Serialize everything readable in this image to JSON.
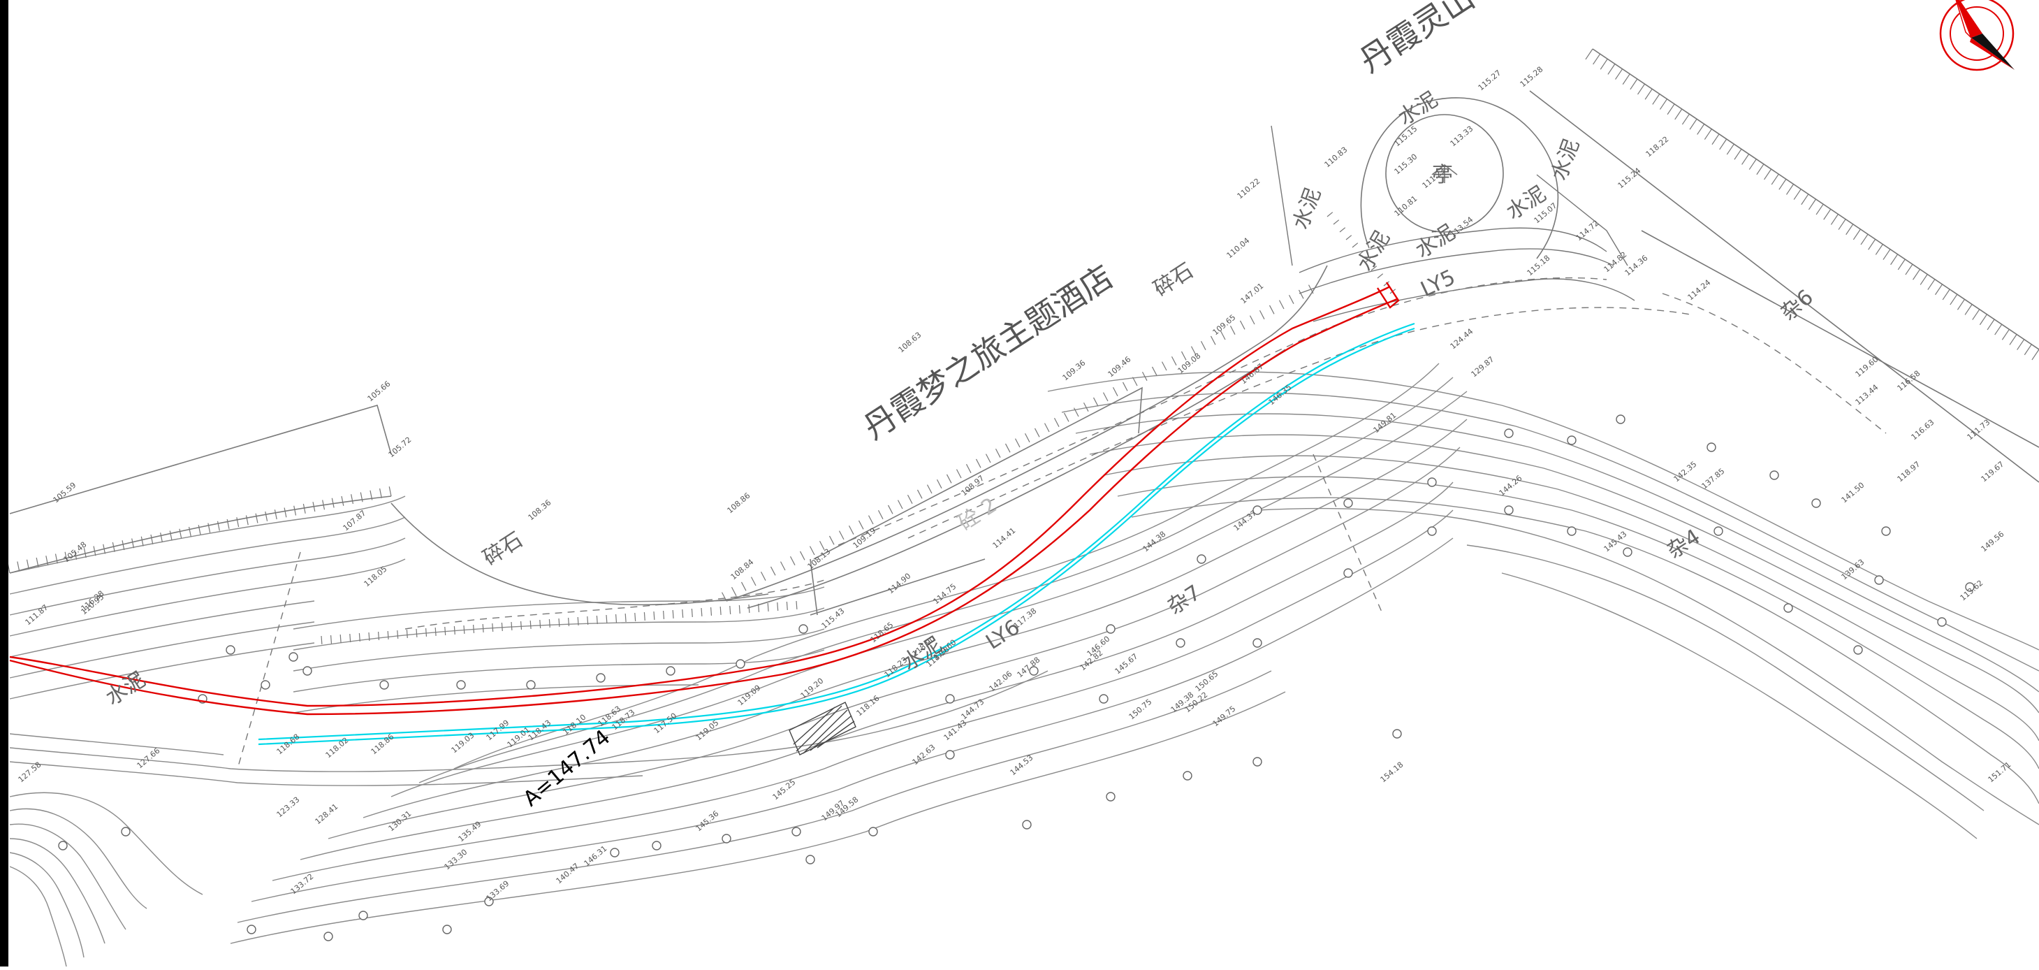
{
  "labels": {
    "hotel": "丹霞梦之旅主题酒店",
    "mountain": "丹霞灵山",
    "annotation": "A=147.74",
    "gravel_1": "碎石",
    "gravel_2": "碎石",
    "concrete_1": "水泥",
    "concrete_2": "水泥",
    "concrete_3": "水泥",
    "concrete_4": "水泥",
    "concrete_5": "水泥",
    "concrete_6": "水泥",
    "concrete_7": "水泥",
    "concrete_8": "水泥",
    "sand_2": "砼 2",
    "road_ly5": "LY5",
    "road_ly6": "LY6",
    "slope_6": "杂6",
    "slope_4": "杂4",
    "slope_7": "杂7",
    "pavilion": "亭"
  },
  "elevations": [
    "105.59",
    "105.48",
    "111.87",
    "110.95",
    "105.66",
    "105.72",
    "108.36",
    "107.87",
    "108.63",
    "109.36",
    "109.46",
    "108.86",
    "108.13",
    "109.19",
    "108.97",
    "108.84",
    "109.08",
    "109.65",
    "110.04",
    "110.22",
    "110.83",
    "110.81",
    "111.23",
    "113.33",
    "115.27",
    "115.28",
    "118.22",
    "115.24",
    "115.30",
    "115.15",
    "113.54",
    "115.07",
    "114.72",
    "114.82",
    "114.36",
    "115.18",
    "114.24",
    "124.44",
    "129.87",
    "137.85",
    "119.60",
    "116.28",
    "118.05",
    "117.38",
    "114.41",
    "114.90",
    "114.75",
    "115.43",
    "118.65",
    "118.90",
    "119.60",
    "118.18",
    "118.23",
    "119.20",
    "119.09",
    "118.63",
    "119.05",
    "118.16",
    "118.68",
    "117.99",
    "118.02",
    "118.86",
    "119.03",
    "119.01",
    "118.43",
    "118.10",
    "118.73",
    "117.50",
    "127.58",
    "127.66",
    "123.33",
    "128.41",
    "130.31",
    "135.49",
    "133.30",
    "133.72",
    "133.69",
    "145.36",
    "145.25",
    "149.97",
    "149.58",
    "142.82",
    "145.67",
    "150.65",
    "142.63",
    "144.73",
    "141.43",
    "142.06",
    "144.38",
    "144.37",
    "146.87",
    "147.01",
    "149.81",
    "146.35",
    "144.26",
    "142.35",
    "141.50",
    "139.63",
    "145.43",
    "149.56",
    "147.88",
    "146.60",
    "150.22",
    "149.75",
    "154.18",
    "144.53",
    "149.38",
    "146.31",
    "140.47",
    "150.75",
    "151.71",
    "113.62",
    "111.73",
    "116.63",
    "118.97",
    "119.67",
    "113.44",
    "116.58"
  ],
  "colors": {
    "background": "#ffffff",
    "contour": "#8a8a8a",
    "red_boundary": "#e10000",
    "cyan_centerline": "#00d8e8",
    "compass": "#e10000"
  },
  "icons": {
    "compass": "north-arrow-icon"
  }
}
